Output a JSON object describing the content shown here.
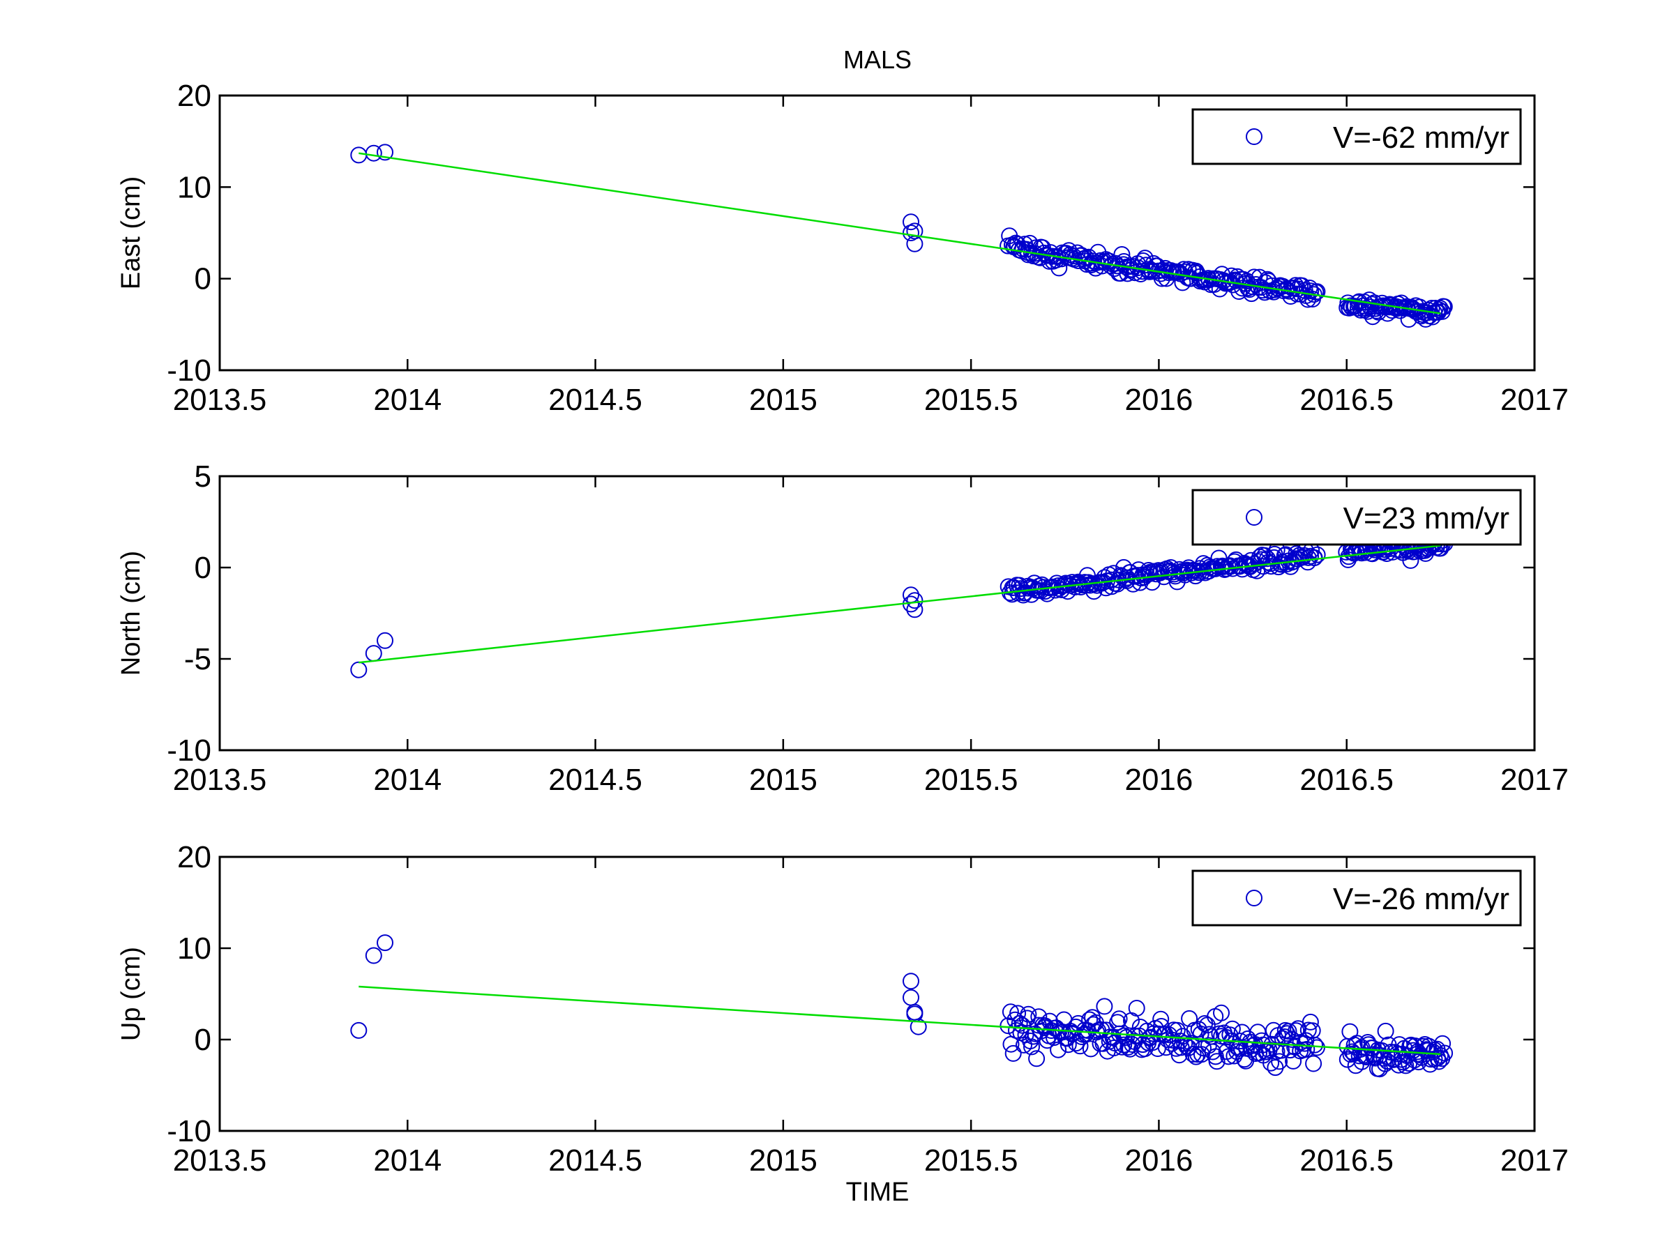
{
  "figure": {
    "title": "MALS",
    "xlabel": "TIME"
  },
  "colors": {
    "marker": "#0000cc",
    "fit_line": "#00dd00",
    "axes": "#000000",
    "background": "#ffffff"
  },
  "chart_data": [
    {
      "type": "scatter",
      "ylabel": "East (cm)",
      "xlim": [
        2013.5,
        2017
      ],
      "ylim": [
        -10,
        20
      ],
      "xticks": [
        "2013.5",
        "2014",
        "2014.5",
        "2015",
        "2015.5",
        "2016",
        "2016.5",
        "2017"
      ],
      "yticks": [
        "-10",
        "0",
        "10",
        "20"
      ],
      "grid": false,
      "legend": {
        "position": "top-right",
        "label": "V=-62 mm/yr"
      },
      "fit_line": {
        "x": [
          2013.87,
          2016.75
        ],
        "y": [
          13.7,
          -3.8
        ]
      },
      "early_points": {
        "x": [
          2013.87,
          2013.91,
          2013.94,
          2015.34,
          2015.34,
          2015.35,
          2015.35
        ],
        "y": [
          13.5,
          13.7,
          13.8,
          6.2,
          5.0,
          3.8,
          5.2
        ]
      },
      "dense_segments": [
        {
          "x_start": 2015.6,
          "x_end": 2016.42,
          "y_start": 3.3,
          "y_end": -1.7,
          "scatter": 0.9,
          "count": 200
        },
        {
          "x_start": 2016.5,
          "x_end": 2016.76,
          "y_start": -2.9,
          "y_end": -3.6,
          "scatter": 0.7,
          "count": 75
        }
      ]
    },
    {
      "type": "scatter",
      "ylabel": "North (cm)",
      "xlim": [
        2013.5,
        2017
      ],
      "ylim": [
        -10,
        5
      ],
      "xticks": [
        "2013.5",
        "2014",
        "2014.5",
        "2015",
        "2015.5",
        "2016",
        "2016.5",
        "2017"
      ],
      "yticks": [
        "-10",
        "-5",
        "0",
        "5"
      ],
      "grid": false,
      "legend": {
        "position": "top-right",
        "label": "V=23 mm/yr"
      },
      "fit_line": {
        "x": [
          2013.87,
          2016.75
        ],
        "y": [
          -5.2,
          1.2
        ]
      },
      "early_points": {
        "x": [
          2013.87,
          2013.91,
          2013.94,
          2015.34,
          2015.34,
          2015.35,
          2015.35
        ],
        "y": [
          -5.6,
          -4.7,
          -4.0,
          -1.5,
          -2.0,
          -2.3,
          -1.8
        ]
      },
      "dense_segments": [
        {
          "x_start": 2015.6,
          "x_end": 2016.42,
          "y_start": -1.3,
          "y_end": 0.6,
          "scatter": 0.4,
          "count": 200
        },
        {
          "x_start": 2016.5,
          "x_end": 2016.76,
          "y_start": 0.9,
          "y_end": 1.1,
          "scatter": 0.35,
          "count": 75
        }
      ]
    },
    {
      "type": "scatter",
      "ylabel": "Up (cm)",
      "xlim": [
        2013.5,
        2017
      ],
      "ylim": [
        -10,
        20
      ],
      "xticks": [
        "2013.5",
        "2014",
        "2014.5",
        "2015",
        "2015.5",
        "2016",
        "2016.5",
        "2017"
      ],
      "yticks": [
        "-10",
        "0",
        "10",
        "20"
      ],
      "grid": false,
      "legend": {
        "position": "top-right",
        "label": "V=-26 mm/yr"
      },
      "fit_line": {
        "x": [
          2013.87,
          2016.75
        ],
        "y": [
          5.8,
          -1.6
        ]
      },
      "early_points": {
        "x": [
          2013.87,
          2013.91,
          2013.94,
          2015.34,
          2015.34,
          2015.35,
          2015.35,
          2015.36
        ],
        "y": [
          1.0,
          9.2,
          10.6,
          6.4,
          4.6,
          3.0,
          2.8,
          1.4
        ]
      },
      "dense_segments": [
        {
          "x_start": 2015.6,
          "x_end": 2016.42,
          "y_start": 1.2,
          "y_end": -0.8,
          "scatter": 2.2,
          "count": 200
        },
        {
          "x_start": 2016.5,
          "x_end": 2016.76,
          "y_start": -1.4,
          "y_end": -1.6,
          "scatter": 1.6,
          "count": 75
        }
      ]
    }
  ]
}
